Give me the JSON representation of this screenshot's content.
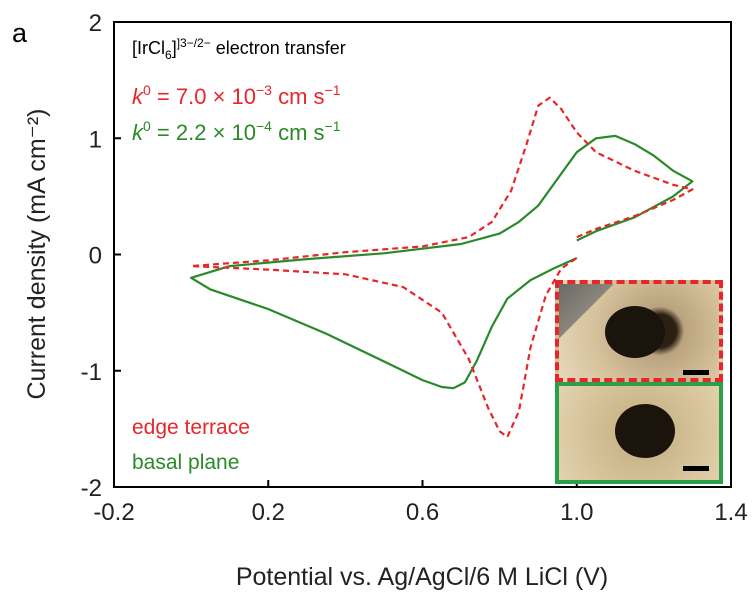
{
  "panel_label": "a",
  "annotation": {
    "line1_prefix": "[IrCl",
    "line1_sub": "6",
    "line1_sup": "]3−/2−",
    "line1_suffix": " electron transfer",
    "k_red_label": "k",
    "k_red_sup": "0",
    "k_red_value": " = 7.0 × 10",
    "k_red_exp": "−3",
    "k_red_unit": " cm s",
    "k_red_unit_exp": "−1",
    "k_green_label": "k",
    "k_green_sup": "0",
    "k_green_value": " = 2.2 × 10",
    "k_green_exp": "−4",
    "k_green_unit": " cm s",
    "k_green_unit_exp": "−1"
  },
  "legend": {
    "edge": "edge terrace",
    "basal": "basal plane"
  },
  "colors": {
    "edge": "#e8262a",
    "basal": "#2a8a2a"
  },
  "chart_data": {
    "type": "line",
    "xlabel": "Potential vs. Ag/AgCl/6 M LiCl (V)",
    "ylabel": "Current density (mA cm⁻²)",
    "xlim": [
      -0.2,
      1.4
    ],
    "ylim": [
      -2,
      2
    ],
    "xticks": [
      "-0.2",
      "0.2",
      "0.6",
      "1.0",
      "1.4"
    ],
    "yticks": [
      "-2",
      "-1",
      "0",
      "1",
      "2"
    ],
    "series": [
      {
        "name": "edge terrace",
        "style": "dashed",
        "x": [
          1.0,
          1.05,
          1.15,
          1.25,
          1.3,
          1.25,
          1.15,
          1.05,
          1.0,
          0.96,
          0.93,
          0.9,
          0.87,
          0.83,
          0.78,
          0.72,
          0.6,
          0.4,
          0.2,
          0.0,
          0.0,
          0.2,
          0.4,
          0.55,
          0.65,
          0.72,
          0.77,
          0.8,
          0.82,
          0.85,
          0.88,
          0.92,
          0.96,
          1.0
        ],
        "y": [
          0.15,
          0.22,
          0.33,
          0.47,
          0.56,
          0.6,
          0.72,
          0.88,
          1.05,
          1.25,
          1.35,
          1.28,
          0.95,
          0.55,
          0.28,
          0.15,
          0.07,
          0.02,
          -0.05,
          -0.1,
          -0.1,
          -0.13,
          -0.17,
          -0.28,
          -0.5,
          -0.9,
          -1.32,
          -1.52,
          -1.57,
          -1.35,
          -0.8,
          -0.35,
          -0.12,
          -0.03
        ]
      },
      {
        "name": "basal plane",
        "style": "solid",
        "x": [
          1.0,
          1.05,
          1.15,
          1.25,
          1.3,
          1.25,
          1.2,
          1.15,
          1.1,
          1.05,
          1.0,
          0.95,
          0.9,
          0.85,
          0.8,
          0.7,
          0.5,
          0.3,
          0.1,
          0.0,
          0.05,
          0.2,
          0.35,
          0.5,
          0.6,
          0.65,
          0.68,
          0.71,
          0.74,
          0.78,
          0.82,
          0.88,
          0.94,
          1.0
        ],
        "y": [
          0.12,
          0.2,
          0.32,
          0.5,
          0.63,
          0.72,
          0.85,
          0.95,
          1.02,
          1.0,
          0.88,
          0.65,
          0.42,
          0.28,
          0.18,
          0.09,
          0.01,
          -0.04,
          -0.1,
          -0.2,
          -0.3,
          -0.47,
          -0.68,
          -0.92,
          -1.08,
          -1.14,
          -1.15,
          -1.1,
          -0.92,
          -0.62,
          -0.38,
          -0.22,
          -0.12,
          -0.03
        ]
      }
    ]
  }
}
